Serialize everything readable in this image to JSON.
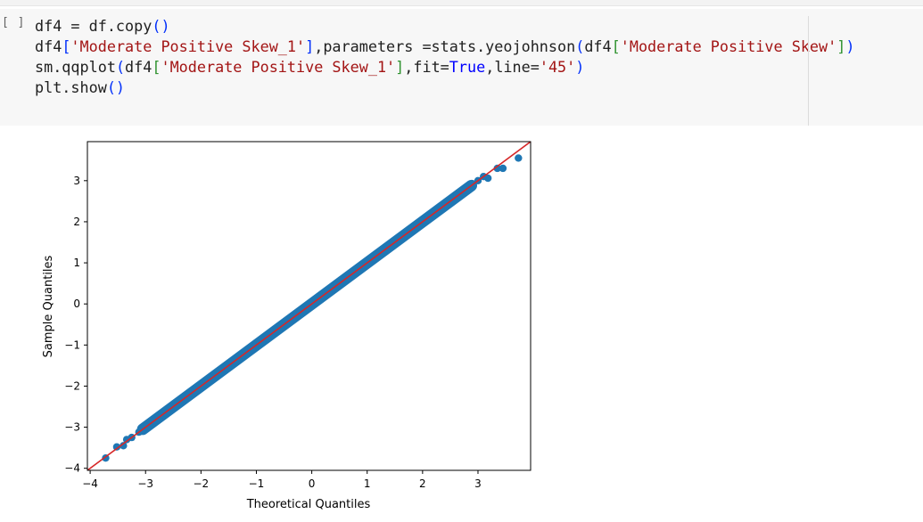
{
  "notebook": {
    "run_indicator": "[ ]",
    "code_lines": [
      [
        {
          "t": "df4 = df.copy",
          "c": ""
        },
        {
          "t": "()",
          "c": "par"
        }
      ],
      [
        {
          "t": "df4",
          "c": ""
        },
        {
          "t": "[",
          "c": "par"
        },
        {
          "t": "'Moderate Positive Skew_1'",
          "c": "str"
        },
        {
          "t": "]",
          "c": "par"
        },
        {
          "t": ",parameters =stats.yeojohnson",
          "c": ""
        },
        {
          "t": "(",
          "c": "par"
        },
        {
          "t": "df4",
          "c": ""
        },
        {
          "t": "[",
          "c": "par2"
        },
        {
          "t": "'Moderate Positive Skew'",
          "c": "str"
        },
        {
          "t": "]",
          "c": "par2"
        },
        {
          "t": ")",
          "c": "par"
        }
      ],
      [
        {
          "t": "sm.qqplot",
          "c": ""
        },
        {
          "t": "(",
          "c": "par"
        },
        {
          "t": "df4",
          "c": ""
        },
        {
          "t": "[",
          "c": "par2"
        },
        {
          "t": "'Moderate Positive Skew_1'",
          "c": "str"
        },
        {
          "t": "]",
          "c": "par2"
        },
        {
          "t": ",fit=",
          "c": ""
        },
        {
          "t": "True",
          "c": "kw"
        },
        {
          "t": ",line=",
          "c": ""
        },
        {
          "t": "'45'",
          "c": "str"
        },
        {
          "t": ")",
          "c": "par"
        }
      ],
      [
        {
          "t": "plt.show",
          "c": ""
        },
        {
          "t": "()",
          "c": "par"
        }
      ]
    ]
  },
  "chart_data": {
    "type": "scatter",
    "xlabel": "Theoretical Quantiles",
    "ylabel": "Sample Quantiles",
    "xlim": [
      -4.05,
      3.95
    ],
    "ylim": [
      -4.05,
      3.95
    ],
    "xticks": [
      -4,
      -3,
      -2,
      -1,
      0,
      1,
      2,
      3
    ],
    "yticks": [
      -4,
      -3,
      -2,
      -1,
      0,
      1,
      2,
      3
    ],
    "xtick_labels": [
      "−4",
      "−3",
      "−2",
      "−1",
      "0",
      "1",
      "2",
      "3"
    ],
    "ytick_labels": [
      "−4",
      "−3",
      "−2",
      "−1",
      "0",
      "1",
      "2",
      "3"
    ],
    "reference_line": {
      "type": "45",
      "color": "#d62728"
    },
    "marker_color": "#1f77b4",
    "points": [
      [
        -3.72,
        -3.75
      ],
      [
        -3.52,
        -3.48
      ],
      [
        -3.4,
        -3.45
      ],
      [
        -3.34,
        -3.3
      ],
      [
        -3.25,
        -3.25
      ],
      [
        -3.12,
        -3.12
      ],
      [
        -2.98,
        -3.0
      ],
      [
        -2.85,
        -2.85
      ],
      [
        -2.62,
        -2.66
      ],
      [
        -2.2,
        -2.18
      ],
      [
        2.78,
        2.82
      ],
      [
        2.9,
        2.92
      ],
      [
        3.0,
        3.0
      ],
      [
        3.1,
        3.1
      ],
      [
        3.18,
        3.06
      ],
      [
        3.35,
        3.3
      ],
      [
        3.45,
        3.3
      ],
      [
        3.73,
        3.55
      ]
    ],
    "body_range": [
      -3.05,
      2.88
    ]
  }
}
